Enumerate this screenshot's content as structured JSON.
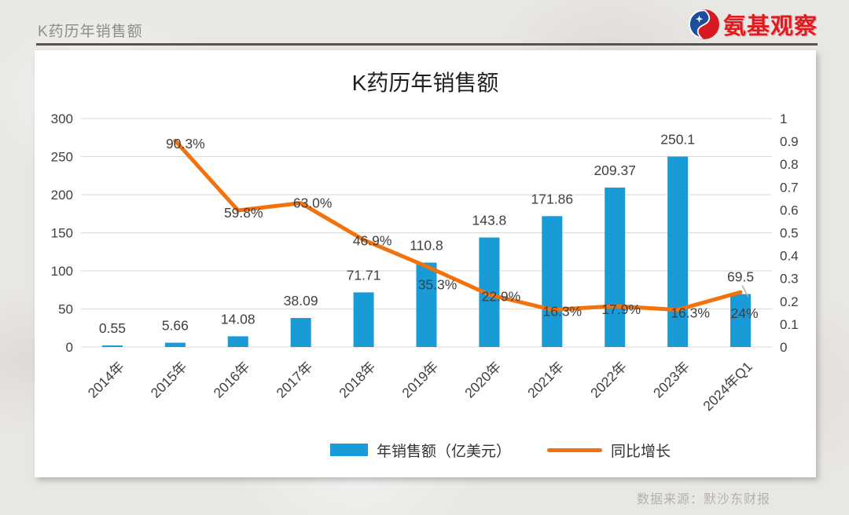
{
  "page": {
    "header_title": "K药历年销售额",
    "brand": {
      "name": "氨基观察",
      "text_color": "#e21a20",
      "icon_red": "#d71a21",
      "icon_blue": "#1e4e9b"
    },
    "source_note": "数据来源：默沙东财报"
  },
  "chart_data": {
    "type": "bar+line combo",
    "title": "K药历年销售额",
    "categories": [
      "2014年",
      "2015年",
      "2016年",
      "2017年",
      "2018年",
      "2019年",
      "2020年",
      "2021年",
      "2022年",
      "2023年",
      "2024年Q1"
    ],
    "series": [
      {
        "name": "年销售额（亿美元）",
        "type": "bar",
        "axis": "left",
        "color": "#199bd7",
        "values": [
          0.55,
          5.66,
          14.08,
          38.09,
          71.71,
          110.8,
          143.8,
          171.86,
          209.37,
          250.1,
          69.5
        ],
        "value_labels": [
          "0.55",
          "5.66",
          "14.08",
          "38.09",
          "71.71",
          "110.8",
          "143.8",
          "171.86",
          "209.37",
          "250.1",
          "69.5"
        ]
      },
      {
        "name": "同比增长",
        "type": "line",
        "axis": "right",
        "color": "#f3720d",
        "values": [
          null,
          0.903,
          0.598,
          0.63,
          0.469,
          0.353,
          0.229,
          0.163,
          0.179,
          0.163,
          0.24
        ],
        "value_labels": [
          null,
          "90.3%",
          "59.8%",
          "63.0%",
          "46.9%",
          "35.3%",
          "22.9%",
          "16.3%",
          "17.9%",
          "16.3%",
          "24%"
        ]
      }
    ],
    "left_axis": {
      "min": 0,
      "max": 300,
      "step": 50,
      "tick_labels": [
        "0",
        "50",
        "100",
        "150",
        "200",
        "250",
        "300"
      ]
    },
    "right_axis": {
      "min": 0,
      "max": 1,
      "step": 0.1,
      "tick_labels": [
        "0",
        "0.1",
        "0.2",
        "0.3",
        "0.4",
        "0.5",
        "0.6",
        "0.7",
        "0.8",
        "0.9",
        "1"
      ]
    },
    "grid": true,
    "legend_position": "bottom",
    "style": {
      "grid_color": "#d9d9d9",
      "tick_text_color": "#404040",
      "label_text_color": "#3f3f3f"
    }
  }
}
